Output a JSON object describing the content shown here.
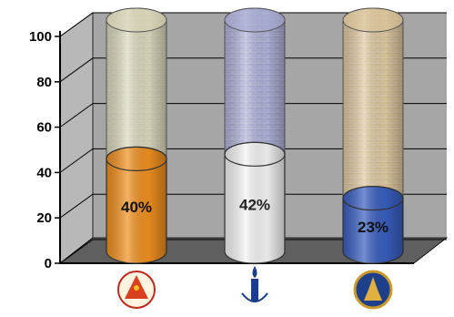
{
  "chart_data": {
    "type": "bar",
    "style": "3d-cylinder",
    "categories": [
      "emblem-1",
      "emblem-2",
      "emblem-3"
    ],
    "values": [
      40,
      42,
      23
    ],
    "data_labels": [
      "40%",
      "42%",
      "23%"
    ],
    "ylim": [
      0,
      100
    ],
    "yticks": [
      "0",
      "20",
      "40",
      "60",
      "80",
      "100"
    ],
    "grid": true,
    "legend": "none",
    "fill_colors": [
      "#f09020",
      "#f4f4f4",
      "#3a5fc0"
    ],
    "glass_colors": [
      "#d8d6b8",
      "#a8acd4",
      "#dcc49a"
    ],
    "emblem_icons": [
      "red-temple-emblem-icon",
      "blue-candle-emblem-icon",
      "gold-stupa-emblem-icon"
    ],
    "colors": {
      "wall": "#a6a6a6",
      "floor": "#5f5f5f",
      "grid": "#000000"
    }
  }
}
